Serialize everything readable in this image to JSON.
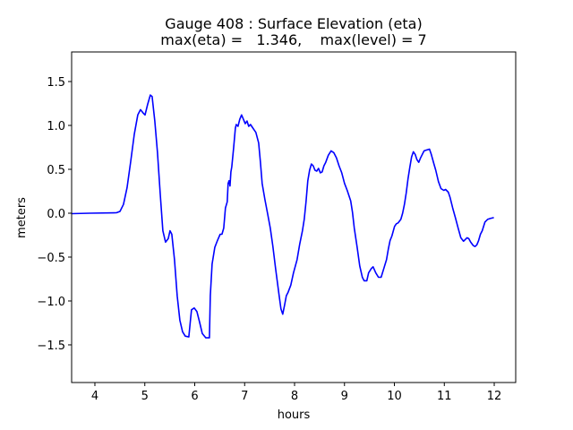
{
  "chart_data": {
    "type": "line",
    "title": "Gauge 408 : Surface Elevation (eta)",
    "subtitle": "max(eta) =   1.346,    max(level) = 7",
    "xlabel": "hours",
    "ylabel": "meters",
    "xlim": [
      3.534,
      12.43
    ],
    "ylim": [
      -1.929,
      1.837
    ],
    "grid": false,
    "xticks": [
      4,
      5,
      6,
      7,
      8,
      9,
      10,
      11,
      12
    ],
    "xtick_labels": [
      "4",
      "5",
      "6",
      "7",
      "8",
      "9",
      "10",
      "11",
      "12"
    ],
    "yticks": [
      -1.5,
      -1.0,
      -0.5,
      0.0,
      0.5,
      1.0,
      1.5
    ],
    "ytick_labels": [
      "−1.5",
      "−1.0",
      "−0.5",
      "0.0",
      "0.5",
      "1.0",
      "1.5"
    ],
    "series": [
      {
        "name": "eta",
        "color": "#0000ff",
        "x": [
          3.534,
          3.892,
          4.43,
          4.502,
          4.573,
          4.645,
          4.717,
          4.789,
          4.86,
          4.914,
          4.968,
          5.004,
          5.057,
          5.111,
          5.147,
          5.201,
          5.254,
          5.308,
          5.362,
          5.416,
          5.47,
          5.505,
          5.541,
          5.595,
          5.649,
          5.703,
          5.756,
          5.81,
          5.882,
          5.918,
          5.935,
          5.989,
          6.043,
          6.097,
          6.151,
          6.222,
          6.294,
          6.312,
          6.348,
          6.401,
          6.455,
          6.509,
          6.545,
          6.581,
          6.616,
          6.652,
          6.67,
          6.688,
          6.706,
          6.724,
          6.742,
          6.778,
          6.814,
          6.832,
          6.867,
          6.903,
          6.939,
          6.975,
          7.011,
          7.047,
          7.082,
          7.118,
          7.154,
          7.19,
          7.226,
          7.28,
          7.315,
          7.351,
          7.405,
          7.459,
          7.513,
          7.566,
          7.62,
          7.692,
          7.728,
          7.763,
          7.799,
          7.835,
          7.871,
          7.925,
          7.978,
          8.05,
          8.104,
          8.158,
          8.194,
          8.229,
          8.265,
          8.301,
          8.337,
          8.373,
          8.409,
          8.444,
          8.48,
          8.516,
          8.552,
          8.588,
          8.624,
          8.677,
          8.731,
          8.785,
          8.839,
          8.892,
          8.946,
          9.0,
          9.054,
          9.125,
          9.161,
          9.197,
          9.251,
          9.305,
          9.358,
          9.394,
          9.448,
          9.484,
          9.538,
          9.573,
          9.627,
          9.681,
          9.735,
          9.789,
          9.842,
          9.878,
          9.914,
          9.95,
          10.004,
          10.039,
          10.075,
          10.129,
          10.165,
          10.201,
          10.237,
          10.272,
          10.308,
          10.344,
          10.38,
          10.416,
          10.452,
          10.487,
          10.523,
          10.559,
          10.595,
          10.649,
          10.703,
          10.738,
          10.792,
          10.828,
          10.882,
          10.935,
          10.989,
          11.025,
          11.079,
          11.115,
          11.168,
          11.222,
          11.276,
          11.33,
          11.384,
          11.419,
          11.455,
          11.491,
          11.527,
          11.581,
          11.616,
          11.652,
          11.688,
          11.724,
          11.76,
          11.814,
          11.867,
          11.921,
          11.993
        ],
        "y": [
          -0.005,
          0,
          0.005,
          0.02,
          0.1,
          0.29,
          0.59,
          0.9,
          1.12,
          1.18,
          1.14,
          1.12,
          1.24,
          1.346,
          1.33,
          1.05,
          0.69,
          0.23,
          -0.2,
          -0.33,
          -0.29,
          -0.2,
          -0.24,
          -0.53,
          -0.94,
          -1.22,
          -1.35,
          -1.4,
          -1.41,
          -1.2,
          -1.1,
          -1.08,
          -1.12,
          -1.24,
          -1.37,
          -1.42,
          -1.42,
          -0.94,
          -0.58,
          -0.39,
          -0.31,
          -0.24,
          -0.24,
          -0.17,
          0.06,
          0.13,
          0.34,
          0.37,
          0.31,
          0.47,
          0.53,
          0.74,
          0.97,
          1.01,
          0.99,
          1.07,
          1.12,
          1.07,
          1.02,
          1.05,
          0.99,
          1.01,
          0.98,
          0.95,
          0.92,
          0.8,
          0.59,
          0.34,
          0.16,
          0,
          -0.17,
          -0.38,
          -0.63,
          -0.94,
          -1.09,
          -1.15,
          -1.05,
          -0.94,
          -0.9,
          -0.82,
          -0.68,
          -0.53,
          -0.35,
          -0.2,
          -0.07,
          0.13,
          0.37,
          0.49,
          0.56,
          0.54,
          0.49,
          0.48,
          0.51,
          0.46,
          0.47,
          0.54,
          0.58,
          0.66,
          0.71,
          0.69,
          0.63,
          0.54,
          0.46,
          0.34,
          0.26,
          0.14,
          0.01,
          -0.17,
          -0.38,
          -0.6,
          -0.73,
          -0.77,
          -0.77,
          -0.68,
          -0.63,
          -0.61,
          -0.68,
          -0.73,
          -0.73,
          -0.63,
          -0.53,
          -0.41,
          -0.31,
          -0.26,
          -0.15,
          -0.12,
          -0.11,
          -0.07,
          0,
          0.1,
          0.23,
          0.39,
          0.52,
          0.64,
          0.7,
          0.67,
          0.61,
          0.58,
          0.63,
          0.67,
          0.71,
          0.72,
          0.73,
          0.67,
          0.56,
          0.49,
          0.36,
          0.28,
          0.26,
          0.27,
          0.24,
          0.18,
          0.06,
          -0.05,
          -0.17,
          -0.28,
          -0.32,
          -0.3,
          -0.28,
          -0.29,
          -0.33,
          -0.37,
          -0.38,
          -0.36,
          -0.31,
          -0.24,
          -0.2,
          -0.1,
          -0.07,
          -0.06,
          -0.05
        ]
      }
    ]
  }
}
